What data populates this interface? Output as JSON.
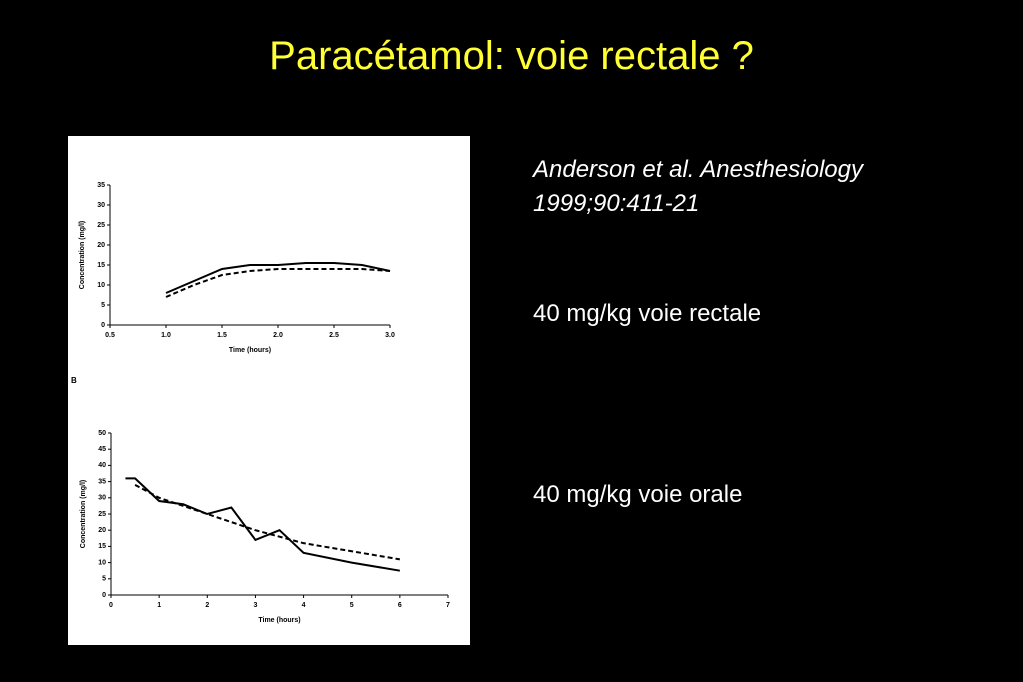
{
  "title": "Paracétamol: voie rectale ?",
  "citation": [
    "Anderson et al. Anesthesiology",
    "1999;90:411-21"
  ],
  "labels": [
    "40 mg/kg voie rectale",
    "40 mg/kg voie orale"
  ],
  "chart_data": [
    {
      "type": "line",
      "xlabel": "Time (hours)",
      "ylabel": "Concentration (mg/l)",
      "xlim": [
        0.5,
        3.0
      ],
      "xticks": [
        0.5,
        {
          "value": 1,
          "label": "1.0"
        },
        1.5,
        {
          "value": 2,
          "label": "2.0"
        },
        2.5,
        {
          "value": 3,
          "label": "3.0"
        }
      ],
      "ylim": [
        0,
        35
      ],
      "yticks": [
        0,
        5,
        10,
        15,
        20,
        25,
        30,
        35
      ],
      "series": [
        {
          "color": "#000000",
          "line_style": "solid",
          "x": [
            1.0,
            1.25,
            1.5,
            1.75,
            2.0,
            2.25,
            2.5,
            2.75,
            3.0
          ],
          "values": [
            8,
            11,
            14,
            15,
            15,
            15.5,
            15.5,
            15,
            13.5
          ]
        },
        {
          "color": "#000000",
          "line_style": "dashed",
          "x": [
            1.0,
            1.25,
            1.5,
            1.75,
            2.0,
            2.25,
            2.5,
            2.75,
            3.0
          ],
          "values": [
            7,
            10,
            12.5,
            13.5,
            14,
            14,
            14,
            14,
            13.5
          ]
        }
      ]
    },
    {
      "type": "line",
      "panel": "B",
      "xlabel": "Time (hours)",
      "ylabel": "Concentration (mg/l)",
      "xlim": [
        0,
        7
      ],
      "xticks": [
        0,
        1,
        2,
        3,
        4,
        5,
        6,
        7
      ],
      "ylim": [
        0,
        50
      ],
      "yticks": [
        0,
        5,
        10,
        15,
        20,
        25,
        30,
        35,
        40,
        45,
        50
      ],
      "series": [
        {
          "color": "#000000",
          "line_style": "solid",
          "x": [
            0.3,
            0.5,
            1,
            1.5,
            2,
            2.5,
            3,
            3.5,
            4,
            5,
            6
          ],
          "values": [
            36,
            36,
            29,
            28,
            25,
            27,
            17,
            20,
            13,
            10,
            7.5
          ]
        },
        {
          "color": "#000000",
          "line_style": "dashed",
          "x": [
            0.5,
            1,
            2,
            3,
            4,
            5,
            6
          ],
          "values": [
            34,
            30,
            25,
            20,
            16,
            13.5,
            11
          ]
        }
      ]
    }
  ]
}
